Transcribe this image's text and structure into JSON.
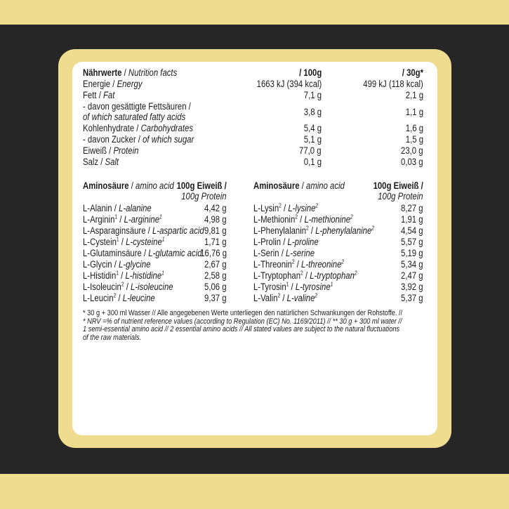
{
  "colors": {
    "yellow": "#f0dc8e",
    "dark": "#262626",
    "panel": "#ffffff"
  },
  "nutrition": {
    "header": {
      "de": "Nährwerte",
      "en": "Nutrition facts",
      "col1": "/ 100g",
      "col2": "/ 30g*"
    },
    "rows": [
      {
        "de": "Energie",
        "en": "Energy",
        "v1": "1663 kJ (394 kcal)",
        "v2": "499 kJ (118 kcal)"
      },
      {
        "de": "Fett",
        "en": "Fat",
        "v1": "7,1 g",
        "v2": "2,1 g"
      },
      {
        "de": "- davon gesättigte Fettsäuren /",
        "en": "of which saturated fatty acids",
        "v1": "3,8 g",
        "v2": "1,1 g",
        "two_line": true
      },
      {
        "de": "Kohlenhydrate",
        "en": "Carbohydrates",
        "v1": "5,4 g",
        "v2": "1,6 g"
      },
      {
        "de": "- davon Zucker",
        "en": "of which sugar",
        "v1": "5,1 g",
        "v2": "1,5 g"
      },
      {
        "de": "Eiweiß",
        "en": "Protein",
        "v1": "77,0 g",
        "v2": "23,0 g"
      },
      {
        "de": "Salz",
        "en": "Salt",
        "v1": "0,1 g",
        "v2": "0,03 g"
      }
    ]
  },
  "amino": {
    "header": {
      "de": "Aminosäure",
      "en": "amino acid",
      "unit_de": "100g Eiweiß /",
      "unit_en": "100g Protein"
    },
    "left": [
      {
        "de": "L-Alanin",
        "de_sup": "",
        "en": "L-alanine",
        "en_sup": "",
        "value": "4,42 g"
      },
      {
        "de": "L-Arginin",
        "de_sup": "1",
        "en": "L-arginine",
        "en_sup": "1",
        "value": "4,98 g"
      },
      {
        "de": "L-Asparaginsäure",
        "de_sup": "",
        "en": "L-aspartic acid",
        "en_sup": "",
        "value": "9,81 g"
      },
      {
        "de": "L-Cystein",
        "de_sup": "1",
        "en": "L-cysteine",
        "en_sup": "1",
        "value": "1,71 g"
      },
      {
        "de": "L-Glutaminsäure",
        "de_sup": "",
        "en": "L-glutamic acid",
        "en_sup": "",
        "value": "16,76 g"
      },
      {
        "de": "L-Glycin",
        "de_sup": "",
        "en": "L-glycine",
        "en_sup": "",
        "value": "2,67 g"
      },
      {
        "de": "L-Histidin",
        "de_sup": "1",
        "en": "L-histidine",
        "en_sup": "1",
        "value": "2,58 g"
      },
      {
        "de": "L-Isoleucin",
        "de_sup": "2",
        "en": "L-isoleucine",
        "en_sup": "",
        "value": "5,06 g"
      },
      {
        "de": "L-Leucin",
        "de_sup": "2",
        "en": "L-leucine",
        "en_sup": "",
        "value": "9,37 g"
      }
    ],
    "right": [
      {
        "de": "L-Lysin",
        "de_sup": "2",
        "en": "L-lysine",
        "en_sup": "2",
        "value": "8,27 g"
      },
      {
        "de": "L-Methionin",
        "de_sup": "2",
        "en": "L-methionine",
        "en_sup": "2",
        "value": "1,91 g"
      },
      {
        "de": "L-Phenylalanin",
        "de_sup": "2",
        "en": "L-phenylalanine",
        "en_sup": "2",
        "value": "4,54 g"
      },
      {
        "de": "L-Prolin",
        "de_sup": "",
        "en": "L-proline",
        "en_sup": "",
        "value": "5,57 g"
      },
      {
        "de": "L-Serin",
        "de_sup": "",
        "en": "L-serine",
        "en_sup": "",
        "value": "5,19 g"
      },
      {
        "de": "L-Threonin",
        "de_sup": "2",
        "en": "L-threonine",
        "en_sup": "2",
        "value": "5,34 g"
      },
      {
        "de": "L-Tryptophan",
        "de_sup": "2",
        "en": "L-tryptophan",
        "en_sup": "2",
        "value": "2,47 g"
      },
      {
        "de": "L-Tyrosin",
        "de_sup": "1",
        "en": "L-tyrosine",
        "en_sup": "1",
        "value": "3,92 g"
      },
      {
        "de": "L-Valin",
        "de_sup": "2",
        "en": "L-valine",
        "en_sup": "2",
        "value": "5,37 g"
      }
    ]
  },
  "footnote": {
    "line1": "* 30 g + 300 ml Wasser //  Alle angegebenen Werte unterliegen den natürlichen Schwankungen der Rohstoffe. //",
    "line2": "* NRV =% of nutrient reference values (according to Regulation (EC) No. 1169/2011) // ** 30 g + 300 ml water //",
    "line3": "1 semi-essential amino acid // 2 essential amino acids // All stated values are subject to the natural fluctuations",
    "line4": "of the raw materials."
  }
}
